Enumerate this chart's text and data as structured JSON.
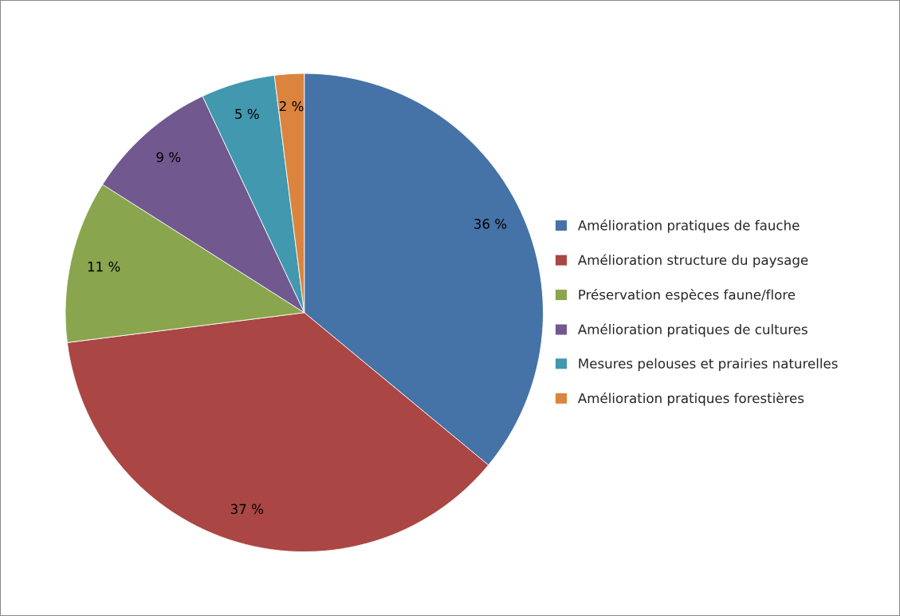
{
  "chart_data": {
    "type": "pie",
    "categories": [
      "Amélioration pratiques de fauche",
      "Amélioration structure du paysage",
      "Préservation espèces faune/flore",
      "Amélioration pratiques de cultures",
      "Mesures pelouses et prairies naturelles",
      "Amélioration pratiques forestières"
    ],
    "values": [
      36,
      37,
      11,
      9,
      5,
      2
    ],
    "colors": [
      "#4572a7",
      "#aa4643",
      "#89a54e",
      "#71588f",
      "#4198af",
      "#db843d"
    ],
    "value_labels": [
      "36 %",
      "37 %",
      "11 %",
      "9 %",
      "5 %",
      "2 %"
    ],
    "legend": "right"
  }
}
